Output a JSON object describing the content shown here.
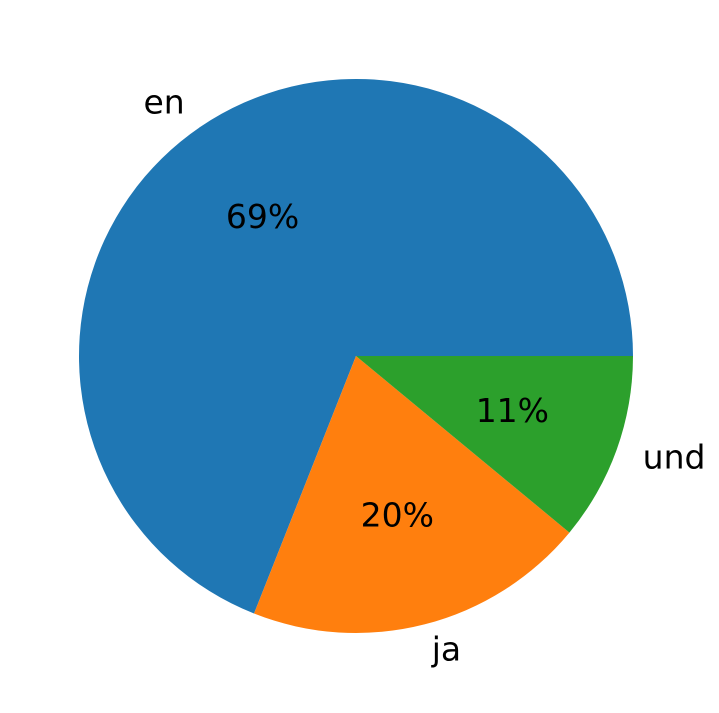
{
  "chart_data": {
    "type": "pie",
    "categories": [
      "en",
      "ja",
      "und"
    ],
    "values": [
      69,
      20,
      11
    ],
    "value_labels": [
      "69%",
      "20%",
      "11%"
    ],
    "colors": [
      "#1f77b4",
      "#ff7f0e",
      "#2ca02c"
    ]
  }
}
